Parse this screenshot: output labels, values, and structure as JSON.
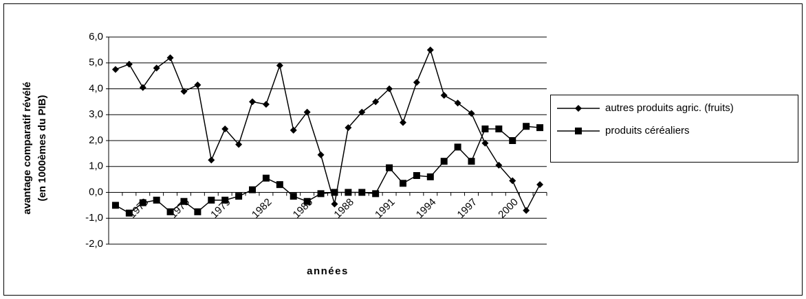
{
  "chart_data": {
    "type": "line",
    "xlabel": "années",
    "ylabel": [
      "avantage comparatif révélé",
      "(en 1000èmes du PIB)"
    ],
    "categories": [
      null,
      null,
      "1973",
      null,
      null,
      "1976",
      null,
      null,
      "1979",
      null,
      null,
      "1982",
      null,
      null,
      "1985",
      null,
      null,
      "1988",
      null,
      null,
      "1991",
      null,
      null,
      "1994",
      null,
      null,
      "1997",
      null,
      null,
      "2000",
      null,
      null
    ],
    "series": [
      {
        "name": "autres produits agric. (fruits)",
        "color": "#000000",
        "marker": "diamond",
        "values": [
          4.75,
          4.95,
          4.05,
          4.8,
          5.2,
          3.9,
          4.15,
          1.25,
          2.45,
          1.85,
          3.5,
          3.4,
          4.9,
          2.4,
          3.1,
          1.45,
          -0.45,
          2.5,
          3.1,
          3.5,
          4.0,
          2.7,
          4.25,
          5.5,
          3.75,
          3.45,
          3.05,
          1.9,
          1.05,
          0.45,
          -0.7,
          0.3
        ]
      },
      {
        "name": "produits céréaliers",
        "color": "#000000",
        "marker": "square",
        "values": [
          -0.5,
          -0.8,
          -0.4,
          -0.3,
          -0.75,
          -0.35,
          -0.75,
          -0.3,
          -0.3,
          -0.15,
          0.1,
          0.55,
          0.3,
          -0.15,
          -0.35,
          -0.05,
          0.0,
          0.0,
          0.0,
          -0.05,
          0.95,
          0.35,
          0.65,
          0.6,
          1.2,
          1.75,
          1.2,
          2.45,
          2.45,
          2.0,
          2.55,
          2.5
        ]
      }
    ],
    "ylim": [
      -2,
      6
    ],
    "yticks": [
      {
        "value": -2,
        "label": "-2,0"
      },
      {
        "value": -1,
        "label": "-1,0"
      },
      {
        "value": 0,
        "label": "0,0"
      },
      {
        "value": 1,
        "label": "1,0"
      },
      {
        "value": 2,
        "label": "2,0"
      },
      {
        "value": 3,
        "label": "3,0"
      },
      {
        "value": 4,
        "label": "4,0"
      },
      {
        "value": 5,
        "label": "5,0"
      },
      {
        "value": 6,
        "label": "6,0"
      }
    ],
    "grid": true,
    "legend": "right"
  }
}
